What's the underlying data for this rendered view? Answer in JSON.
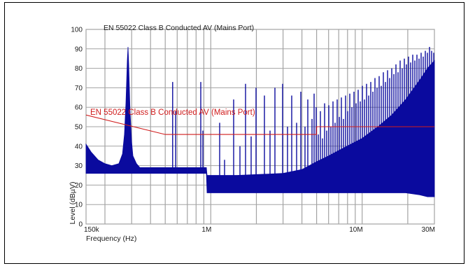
{
  "chart_data": {
    "type": "line",
    "title": "EN 55022 Class B Conducted AV (Mains Port)",
    "xlabel": "Frequency (Hz)",
    "ylabel": "Level (dBµV)",
    "x_scale": "log",
    "xlim": [
      150000,
      30000000
    ],
    "ylim": [
      0,
      100
    ],
    "grid": true,
    "grid_color": "#a3a3a3",
    "x_ticks": [
      {
        "value": 150000,
        "label": "150k"
      },
      {
        "value": 1000000,
        "label": "1M"
      },
      {
        "value": 10000000,
        "label": "10M"
      },
      {
        "value": 30000000,
        "label": "30M"
      }
    ],
    "y_ticks": [
      {
        "value": 100,
        "label": "100"
      },
      {
        "value": 90,
        "label": "90"
      },
      {
        "value": 80,
        "label": "80"
      },
      {
        "value": 70,
        "label": "70"
      },
      {
        "value": 60,
        "label": "60"
      },
      {
        "value": 50,
        "label": "50"
      },
      {
        "value": 40,
        "label": "40"
      },
      {
        "value": 30,
        "label": "30"
      },
      {
        "value": 20,
        "label": "20"
      },
      {
        "value": 10,
        "label": "10"
      },
      {
        "value": 0,
        "label": "0"
      }
    ],
    "x_grid": [
      200000,
      300000,
      400000,
      500000,
      600000,
      700000,
      800000,
      900000,
      1000000,
      2000000,
      3000000,
      4000000,
      5000000,
      6000000,
      7000000,
      8000000,
      9000000,
      10000000,
      20000000
    ],
    "series": [
      {
        "name": "EN 55022 Class B Conducted AV (Mains Port)",
        "color": "#d01c1c",
        "points": [
          [
            150000,
            56
          ],
          [
            500000,
            46
          ],
          [
            5000000,
            46
          ],
          [
            5000000,
            50
          ],
          [
            30000000,
            50
          ]
        ]
      },
      {
        "color": "#0a0a9e",
        "band": [
          [
            150000,
            26,
            41
          ],
          [
            162000,
            26,
            37
          ],
          [
            180000,
            26,
            33
          ],
          [
            200000,
            26,
            31
          ],
          [
            222000,
            26,
            30
          ],
          [
            247000,
            26,
            31
          ],
          [
            261000,
            26,
            36
          ],
          [
            269000,
            26,
            46
          ],
          [
            275000,
            26,
            62
          ],
          [
            281000,
            26,
            84
          ],
          [
            284000,
            26,
            91
          ],
          [
            287000,
            26,
            82
          ],
          [
            293000,
            26,
            58
          ],
          [
            300000,
            26,
            42
          ],
          [
            306000,
            26,
            35
          ],
          [
            323000,
            26,
            31
          ],
          [
            340000,
            26,
            29
          ],
          [
            521000,
            26,
            29
          ],
          [
            935000,
            26,
            29
          ],
          [
            945000,
            16,
            25
          ],
          [
            1500000,
            16,
            25
          ],
          [
            3000000,
            16,
            26
          ],
          [
            4000000,
            16,
            28
          ],
          [
            5000000,
            16,
            32
          ],
          [
            6000000,
            16,
            35
          ],
          [
            7500000,
            16,
            39
          ],
          [
            10000000,
            16,
            44
          ],
          [
            12700000,
            16,
            50
          ],
          [
            15700000,
            16,
            56
          ],
          [
            19400000,
            16,
            64
          ],
          [
            24000000,
            15,
            74
          ],
          [
            27000000,
            14,
            80
          ],
          [
            30000000,
            14,
            84
          ]
        ],
        "spikes": [
          [
            560000,
            73
          ],
          [
            586000,
            58
          ],
          [
            859000,
            73
          ],
          [
            887000,
            48
          ],
          [
            1145000,
            52
          ],
          [
            1233000,
            33
          ],
          [
            1416000,
            64
          ],
          [
            1558000,
            40
          ],
          [
            1697000,
            72
          ],
          [
            1847000,
            45
          ],
          [
            1991000,
            70
          ],
          [
            2262000,
            66
          ],
          [
            2462000,
            48
          ],
          [
            2652000,
            70
          ],
          [
            2982000,
            72
          ],
          [
            3211000,
            50
          ],
          [
            3424000,
            66
          ],
          [
            3688000,
            52
          ],
          [
            3932000,
            68
          ],
          [
            4192000,
            50
          ],
          [
            4374000,
            64
          ],
          [
            4662000,
            54
          ],
          [
            4813000,
            67
          ],
          [
            4969000,
            60
          ],
          [
            5130000,
            46
          ],
          [
            5297000,
            58
          ],
          [
            5469000,
            44
          ],
          [
            5646000,
            62
          ],
          [
            5829000,
            48
          ],
          [
            6018000,
            61
          ],
          [
            6213000,
            50
          ],
          [
            6415000,
            63
          ],
          [
            6623000,
            52
          ],
          [
            6838000,
            64
          ],
          [
            7060000,
            55
          ],
          [
            7289000,
            65
          ],
          [
            7525000,
            54
          ],
          [
            7769000,
            66
          ],
          [
            8021000,
            58
          ],
          [
            8282000,
            67
          ],
          [
            8550000,
            60
          ],
          [
            8828000,
            68
          ],
          [
            9114000,
            62
          ],
          [
            9410000,
            69
          ],
          [
            9715000,
            63
          ],
          [
            10030000,
            71
          ],
          [
            10356000,
            64
          ],
          [
            10692000,
            72
          ],
          [
            11039000,
            66
          ],
          [
            11397000,
            73
          ],
          [
            11767000,
            68
          ],
          [
            12149000,
            75
          ],
          [
            12543000,
            70
          ],
          [
            12950000,
            76
          ],
          [
            13370000,
            71
          ],
          [
            13804000,
            78
          ],
          [
            14252000,
            73
          ],
          [
            14714000,
            79
          ],
          [
            15191000,
            75
          ],
          [
            15684000,
            80
          ],
          [
            16193000,
            77
          ],
          [
            16718000,
            82
          ],
          [
            17260000,
            78
          ],
          [
            17820000,
            84
          ],
          [
            18398000,
            80
          ],
          [
            18995000,
            85
          ],
          [
            19611000,
            82
          ],
          [
            20247000,
            86
          ],
          [
            20904000,
            83
          ],
          [
            21582000,
            87
          ],
          [
            22282000,
            84
          ],
          [
            23005000,
            87
          ],
          [
            23751000,
            85
          ],
          [
            24521000,
            88
          ],
          [
            25317000,
            86
          ],
          [
            26138000,
            89
          ],
          [
            26986000,
            88
          ],
          [
            27861000,
            91
          ],
          [
            28765000,
            89
          ],
          [
            29698000,
            88
          ]
        ]
      }
    ]
  }
}
